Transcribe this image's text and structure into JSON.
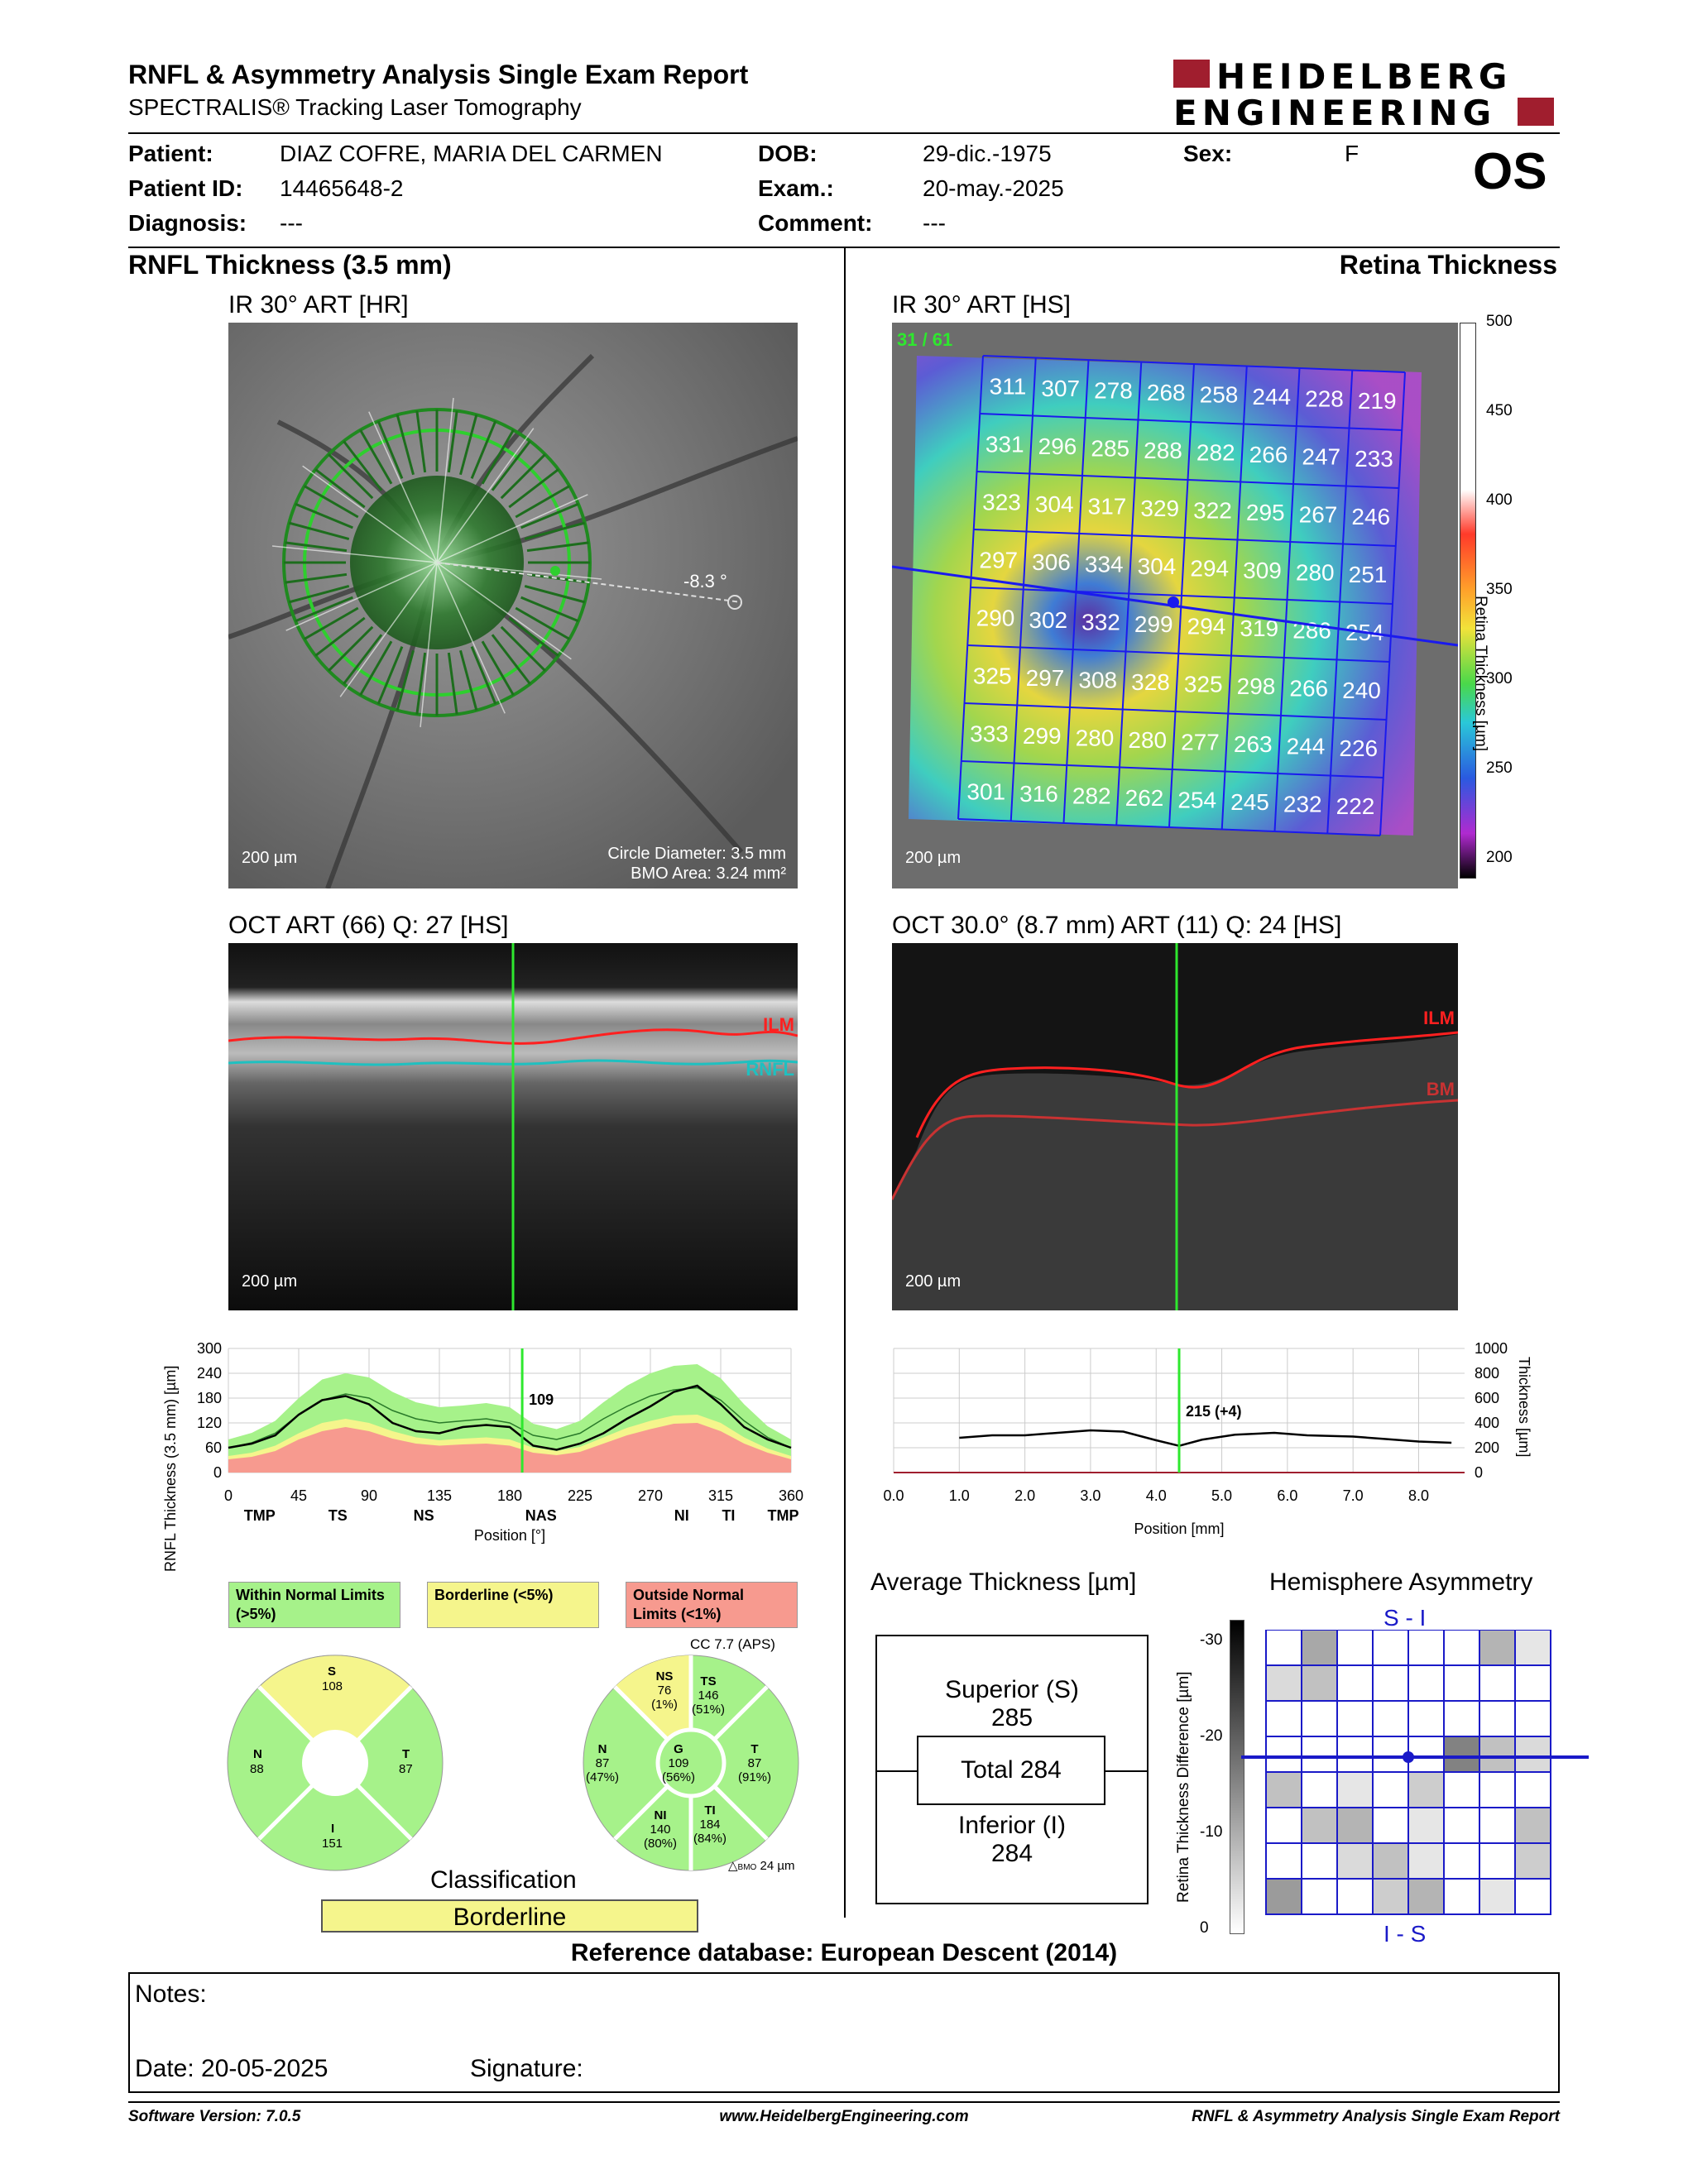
{
  "header": {
    "title": "RNFL & Asymmetry Analysis Single Exam Report",
    "subtitle": "SPECTRALIS® Tracking Laser Tomography",
    "logo_line1": "HEIDELBERG",
    "logo_line2": "ENGINEERING"
  },
  "patient": {
    "patient_label": "Patient:",
    "patient_value": "DIAZ COFRE, MARIA DEL CARMEN",
    "id_label": "Patient ID:",
    "id_value": "14465648-2",
    "diagnosis_label": "Diagnosis:",
    "diagnosis_value": "---",
    "dob_label": "DOB:",
    "dob_value": "29-dic.-1975",
    "exam_label": "Exam.:",
    "exam_value": "20-may.-2025",
    "comment_label": "Comment:",
    "comment_value": "---",
    "sex_label": "Sex:",
    "sex_value": "F",
    "eye": "OS"
  },
  "left": {
    "section_title": "RNFL Thickness (3.5 mm)",
    "ir_title": "IR 30° ART [HR]",
    "ir_scale": "200 µm",
    "circle_diameter": "Circle Diameter: 3.5 mm",
    "bmo_area": "BMO Area: 3.24 mm²",
    "angle": "-8.3 °",
    "oct_title": "OCT ART (66) Q: 27 [HS]",
    "oct_scale": "200 µm",
    "ilm": "ILM",
    "rnfl": "RNFL"
  },
  "right": {
    "section_title": "Retina Thickness",
    "ir_title": "IR 30° ART [HS]",
    "ir_scale": "200 µm",
    "counter": "31 / 61",
    "colorbar_ticks": [
      "500",
      "450",
      "400",
      "350",
      "300",
      "250",
      "200"
    ],
    "colorbar_label": "Retina Thickness [µm]",
    "grid": [
      [
        "311",
        "307",
        "278",
        "268",
        "258",
        "244",
        "228",
        "219"
      ],
      [
        "331",
        "296",
        "285",
        "288",
        "282",
        "266",
        "247",
        "233"
      ],
      [
        "323",
        "304",
        "317",
        "329",
        "322",
        "295",
        "267",
        "246"
      ],
      [
        "297",
        "306",
        "334",
        "304",
        "294",
        "309",
        "280",
        "251"
      ],
      [
        "290",
        "302",
        "332",
        "299",
        "294",
        "319",
        "286",
        "254"
      ],
      [
        "325",
        "297",
        "308",
        "328",
        "325",
        "298",
        "266",
        "240"
      ],
      [
        "333",
        "299",
        "280",
        "280",
        "277",
        "263",
        "244",
        "226"
      ],
      [
        "301",
        "316",
        "282",
        "262",
        "254",
        "245",
        "232",
        "222"
      ]
    ],
    "oct_title": "OCT 30.0° (8.7 mm) ART (11) Q: 24 [HS]",
    "oct_scale": "200 µm",
    "ilm": "ILM",
    "bm": "BM"
  },
  "chart_data": [
    {
      "type": "area",
      "ylabel": "RNFL Thickness (3.5 mm) [µm]",
      "xlabel": "Position [°]",
      "ylim": [
        0,
        300
      ],
      "xlim": [
        0,
        360
      ],
      "yticks": [
        "300",
        "240",
        "180",
        "120",
        "60",
        "0"
      ],
      "xticks": [
        "0",
        "45",
        "90",
        "135",
        "180",
        "225",
        "270",
        "315",
        "360"
      ],
      "sector_labels": [
        "TMP",
        "TS",
        "NS",
        "NAS",
        "NI",
        "TI",
        "TMP"
      ],
      "marker_value": "109",
      "marker_x": 188,
      "x": [
        0,
        15,
        30,
        45,
        60,
        75,
        90,
        105,
        120,
        135,
        150,
        165,
        180,
        195,
        210,
        225,
        240,
        255,
        270,
        285,
        300,
        315,
        330,
        345,
        360
      ],
      "measured": [
        60,
        70,
        90,
        140,
        175,
        185,
        165,
        120,
        100,
        95,
        110,
        115,
        110,
        65,
        55,
        70,
        95,
        130,
        160,
        195,
        210,
        165,
        110,
        80,
        60
      ],
      "normal": [
        60,
        72,
        95,
        140,
        175,
        190,
        180,
        150,
        130,
        120,
        125,
        130,
        120,
        90,
        80,
        95,
        130,
        160,
        185,
        200,
        205,
        175,
        125,
        85,
        60
      ],
      "p5": [
        40,
        48,
        65,
        95,
        120,
        130,
        120,
        100,
        85,
        78,
        82,
        85,
        80,
        60,
        52,
        62,
        85,
        108,
        125,
        138,
        140,
        120,
        85,
        58,
        40
      ],
      "p1": [
        32,
        38,
        52,
        80,
        100,
        110,
        100,
        82,
        70,
        65,
        68,
        70,
        65,
        48,
        42,
        50,
        70,
        90,
        105,
        118,
        120,
        100,
        70,
        48,
        32
      ],
      "upper": [
        80,
        96,
        125,
        180,
        225,
        240,
        230,
        195,
        170,
        158,
        162,
        168,
        158,
        118,
        105,
        125,
        170,
        210,
        240,
        258,
        262,
        228,
        165,
        112,
        80
      ]
    },
    {
      "type": "line",
      "ylabel": "Thickness [µm]",
      "xlabel": "Position [mm]",
      "ylim": [
        0,
        1000
      ],
      "xlim": [
        0,
        8.7
      ],
      "yticks": [
        "1000",
        "800",
        "600",
        "400",
        "200",
        "0"
      ],
      "xticks": [
        "0.0",
        "1.0",
        "2.0",
        "3.0",
        "4.0",
        "5.0",
        "6.0",
        "7.0",
        "8.0"
      ],
      "marker_value": "215 (+4)",
      "marker_x": 4.35,
      "x": [
        1.0,
        1.5,
        2.0,
        2.5,
        3.0,
        3.5,
        4.0,
        4.35,
        4.7,
        5.2,
        5.8,
        6.3,
        7.0,
        7.5,
        8.0,
        8.5
      ],
      "y": [
        280,
        300,
        300,
        320,
        340,
        330,
        260,
        215,
        265,
        305,
        320,
        300,
        290,
        270,
        250,
        240
      ]
    }
  ],
  "legend": {
    "within": "Within Normal Limits (>5%)",
    "borderline": "Borderline (<5%)",
    "outside": "Outside Normal Limits (<1%)",
    "within_color": "#a6f28a",
    "borderline_color": "#f5f58c",
    "outside_color": "#f79a8f"
  },
  "sectors_left": {
    "S_label": "S",
    "S_value": "108",
    "N_label": "N",
    "N_value": "88",
    "T_label": "T",
    "T_value": "87",
    "I_label": "I",
    "I_value": "151"
  },
  "sectors_right": {
    "cc": "CC 7.7 (APS)",
    "NS_label": "NS",
    "NS_value": "76",
    "NS_pct": "(1%)",
    "TS_label": "TS",
    "TS_value": "146",
    "TS_pct": "(51%)",
    "N_label": "N",
    "N_value": "87",
    "N_pct": "(47%)",
    "G_label": "G",
    "G_value": "109",
    "G_pct": "(56%)",
    "T_label": "T",
    "T_value": "87",
    "T_pct": "(91%)",
    "NI_label": "NI",
    "NI_value": "140",
    "NI_pct": "(80%)",
    "TI_label": "TI",
    "TI_value": "184",
    "TI_pct": "(84%)",
    "bmo": "BMO",
    "bmo_value": "24 µm"
  },
  "classification": {
    "title": "Classification",
    "value": "Borderline"
  },
  "average": {
    "title": "Average Thickness [µm]",
    "superior_label": "Superior (S)",
    "superior_value": "285",
    "total_label": "Total 284",
    "inferior_label": "Inferior (I)",
    "inferior_value": "284"
  },
  "asymmetry": {
    "title": "Hemisphere Asymmetry",
    "top_label": "S - I",
    "bottom_label": "I - S",
    "axis_label": "Retina Thickness Difference [µm]",
    "ticks": [
      "-30",
      "-20",
      "-10",
      "0"
    ],
    "cells": [
      [
        0,
        35,
        0,
        0,
        0,
        0,
        30,
        10
      ],
      [
        15,
        25,
        0,
        0,
        0,
        0,
        0,
        0
      ],
      [
        0,
        0,
        0,
        0,
        0,
        0,
        0,
        0
      ],
      [
        0,
        0,
        0,
        0,
        0,
        50,
        25,
        15
      ],
      [
        25,
        0,
        10,
        0,
        20,
        0,
        0,
        0
      ],
      [
        0,
        25,
        30,
        0,
        10,
        0,
        0,
        25
      ],
      [
        0,
        0,
        15,
        25,
        10,
        0,
        0,
        20
      ],
      [
        40,
        0,
        0,
        20,
        30,
        0,
        10,
        0
      ]
    ]
  },
  "reference": "Reference database: European Descent (2014)",
  "notes": {
    "notes_label": "Notes:",
    "date_label": "Date: 20-05-2025",
    "signature_label": "Signature:"
  },
  "footer": {
    "software": "Software Version: 7.0.5",
    "website": "www.HeidelbergEngineering.com",
    "report": "RNFL & Asymmetry Analysis Single Exam Report"
  }
}
